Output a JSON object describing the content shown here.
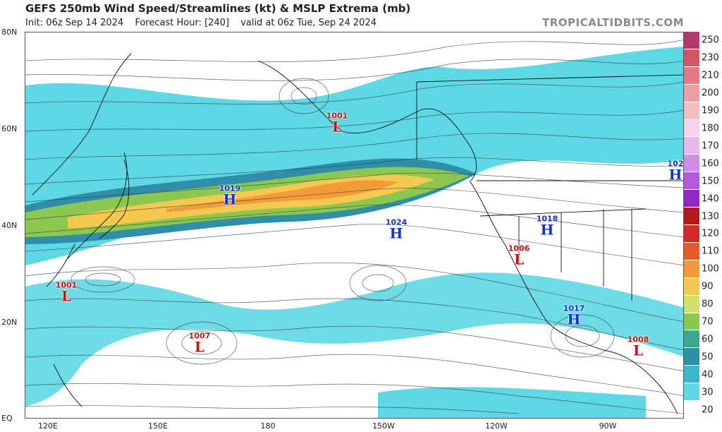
{
  "header": {
    "title": "GEFS 250mb Wind Speed/Streamlines (kt) & MSLP Extrema (mb)",
    "init": "Init: 06z Sep 14 2024",
    "forecast": "Forecast Hour: [240]",
    "valid": "valid at 06z Tue, Sep 24 2024",
    "brand": "TROPICALTIDBITS.COM"
  },
  "axes": {
    "lat_labels": [
      "80N",
      "60N",
      "40N",
      "20N",
      "EQ"
    ],
    "lon_labels": [
      "120E",
      "150E",
      "180",
      "150W",
      "120W",
      "90W"
    ]
  },
  "colorbar": {
    "labels": [
      "250",
      "230",
      "210",
      "200",
      "190",
      "180",
      "170",
      "160",
      "150",
      "140",
      "130",
      "120",
      "110",
      "100",
      "90",
      "80",
      "70",
      "60",
      "50",
      "40",
      "30",
      "20"
    ],
    "colors": [
      "#b23a6a",
      "#d4546a",
      "#e27a86",
      "#ee9ea6",
      "#f5bfc2",
      "#f3d2ea",
      "#e6b9ee",
      "#cf8fe6",
      "#b45ad8",
      "#8f27c0",
      "#b21a1a",
      "#d62a2a",
      "#e55a2a",
      "#f39a3a",
      "#f5c850",
      "#cfe070",
      "#8cc850",
      "#3ba88a",
      "#2f8fa8",
      "#3eb5c8",
      "#5ed8e4",
      "#ffffff"
    ]
  },
  "extrema": [
    {
      "type": "L",
      "value": "1001",
      "symbol": "L"
    },
    {
      "type": "H",
      "value": "1019",
      "symbol": "H"
    },
    {
      "type": "H",
      "value": "1024",
      "symbol": "H"
    },
    {
      "type": "L",
      "value": "1001",
      "symbol": "L"
    },
    {
      "type": "L",
      "value": "1007",
      "symbol": "L"
    },
    {
      "type": "H",
      "value": "1018",
      "symbol": "H"
    },
    {
      "type": "L",
      "value": "1006",
      "symbol": "L"
    },
    {
      "type": "H",
      "value": "1017",
      "symbol": "H"
    },
    {
      "type": "L",
      "value": "1008",
      "symbol": "L"
    },
    {
      "type": "H",
      "value": "102",
      "symbol": "H"
    }
  ]
}
